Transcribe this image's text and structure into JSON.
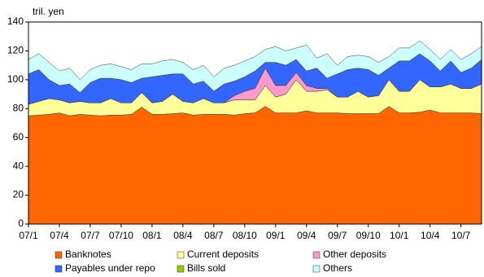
{
  "chart_data": {
    "type": "stacked_area",
    "y_label": "tril. yen",
    "categories": [
      "07/1",
      null,
      null,
      "07/4",
      null,
      null,
      "07/7",
      null,
      null,
      "07/10",
      null,
      null,
      "08/1",
      null,
      null,
      "08/4",
      null,
      null,
      "08/7",
      null,
      null,
      "08/10",
      null,
      null,
      "09/1",
      null,
      null,
      "09/4",
      null,
      null,
      "09/7",
      null,
      null,
      "09/10",
      null,
      null,
      "10/1",
      null,
      null,
      "10/4",
      null,
      null,
      "10/7",
      null,
      null
    ],
    "ylim": [
      0,
      140
    ],
    "yticks": [
      0,
      20,
      40,
      60,
      80,
      100,
      120,
      140
    ],
    "grid": false,
    "series": [
      {
        "name": "Banknotes",
        "color": "#ff6600",
        "values": [
          75,
          75.5,
          76,
          77,
          75,
          76,
          75.5,
          75,
          75.5,
          75.5,
          76,
          81,
          76,
          76,
          76.5,
          77,
          75.5,
          76,
          76,
          76,
          75.5,
          76.5,
          77,
          81.5,
          77,
          77,
          77,
          78.5,
          77,
          77,
          77,
          76.5,
          76.5,
          76.5,
          76.5,
          81.5,
          77,
          77,
          77.5,
          79,
          77,
          77,
          77,
          77,
          76.5
        ]
      },
      {
        "name": "Current deposits",
        "color": "#ffff99",
        "values": [
          8,
          9.5,
          11,
          9,
          9,
          9,
          8.5,
          9,
          11.5,
          8.5,
          8,
          10,
          8,
          9,
          13.5,
          8,
          8.5,
          11,
          8,
          8,
          10.5,
          9.5,
          9,
          14.5,
          11,
          13,
          23,
          13.5,
          15,
          16,
          11,
          11.5,
          15.5,
          11.5,
          12.5,
          18.5,
          15,
          15,
          22.5,
          16,
          18,
          20,
          17,
          17,
          20.5
        ]
      },
      {
        "name": "Other deposits",
        "color": "#ff99cc",
        "values": [
          0,
          0,
          0,
          0,
          0,
          0,
          0,
          0,
          0,
          0,
          0,
          0,
          0,
          0,
          0,
          0,
          0,
          0,
          0,
          0,
          3,
          6,
          8,
          12,
          8,
          6,
          5,
          4,
          2,
          1,
          0,
          0,
          0,
          0,
          0,
          0,
          0,
          0,
          0,
          0,
          0,
          0,
          0,
          0,
          0
        ]
      },
      {
        "name": "Payables under repo",
        "color": "#3366ff",
        "values": [
          21,
          22,
          13,
          10,
          13,
          6,
          14,
          17,
          14,
          16,
          14,
          10,
          18,
          18,
          14,
          19,
          13,
          12,
          8,
          13,
          10,
          10,
          12,
          4,
          16,
          14,
          9,
          10,
          14,
          7,
          16,
          19,
          16,
          19,
          14,
          8,
          21,
          21,
          18,
          18,
          11,
          16,
          11,
          14,
          17
        ]
      },
      {
        "name": "Bills sold",
        "color": "#99cc00",
        "values": [
          0,
          0,
          0,
          0,
          0,
          0,
          0,
          0,
          0,
          0,
          0,
          0,
          0,
          0,
          0,
          0,
          0,
          0,
          0,
          0,
          0,
          0,
          0,
          0,
          0,
          0,
          0,
          0,
          0,
          0,
          0,
          0,
          0,
          0,
          0,
          0,
          0,
          0,
          0,
          0,
          0,
          0,
          0,
          0,
          0
        ]
      },
      {
        "name": "Others",
        "color": "#ccffff",
        "values": [
          10,
          11,
          12,
          10,
          11,
          9,
          9,
          9,
          10,
          9,
          9,
          10,
          9,
          10,
          10,
          8,
          10,
          11,
          10,
          11,
          11,
          11,
          10,
          9,
          11,
          10,
          8,
          18,
          7,
          17,
          6,
          9,
          9,
          9,
          9,
          8,
          9,
          9,
          9,
          8,
          8,
          8,
          9,
          10,
          9
        ]
      }
    ]
  }
}
